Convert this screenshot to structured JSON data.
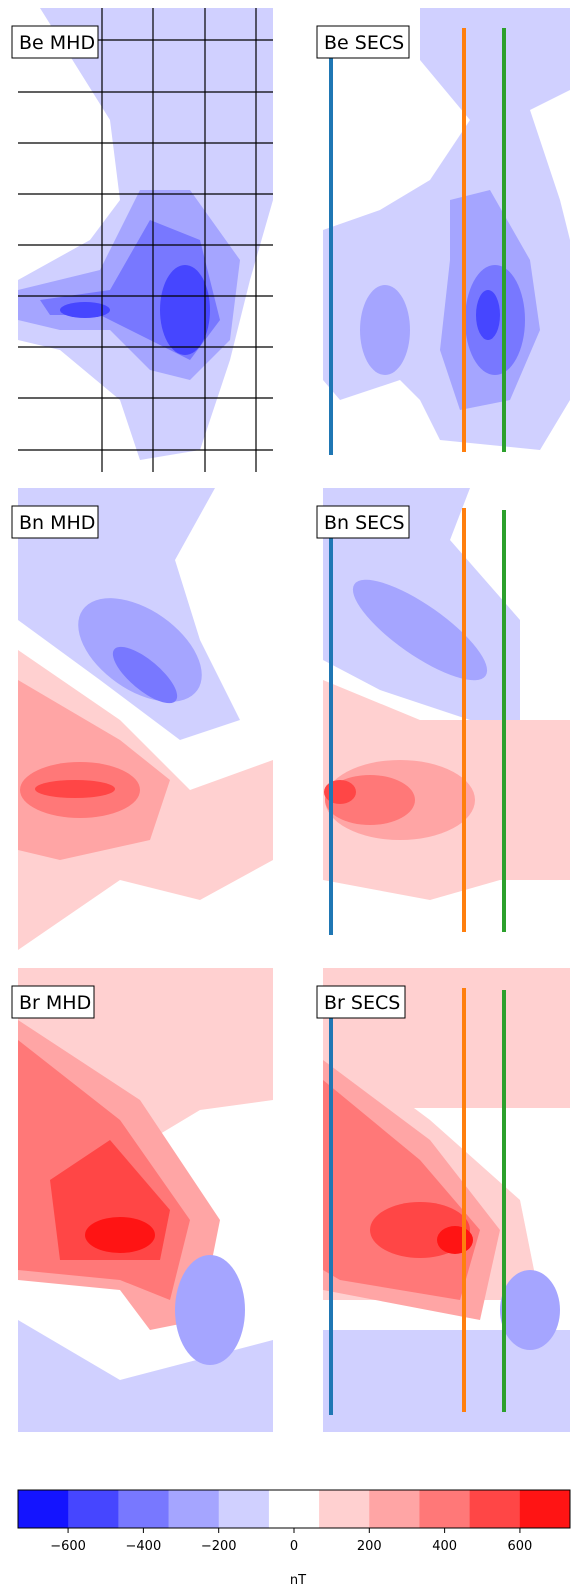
{
  "panels": [
    "Be MHD",
    "Be SECS",
    "Bn MHD",
    "Bn SECS",
    "Br MHD",
    "Br SECS"
  ],
  "chart_data": {
    "type": "colorbar",
    "xlabel": "nT",
    "xlim": [
      -733,
      733
    ],
    "colors": [
      "#1414ff",
      "#4646ff",
      "#7878ff",
      "#a5a5ff",
      "#d0d0ff",
      "#ffffff",
      "#ffd0d0",
      "#ffa5a5",
      "#ff7878",
      "#ff4646",
      "#ff1414"
    ],
    "xticks": [
      {
        "value": -600,
        "label": "−600"
      },
      {
        "value": -400,
        "label": "−400"
      },
      {
        "value": -200,
        "label": "−200"
      },
      0,
      200,
      400,
      600
    ]
  }
}
